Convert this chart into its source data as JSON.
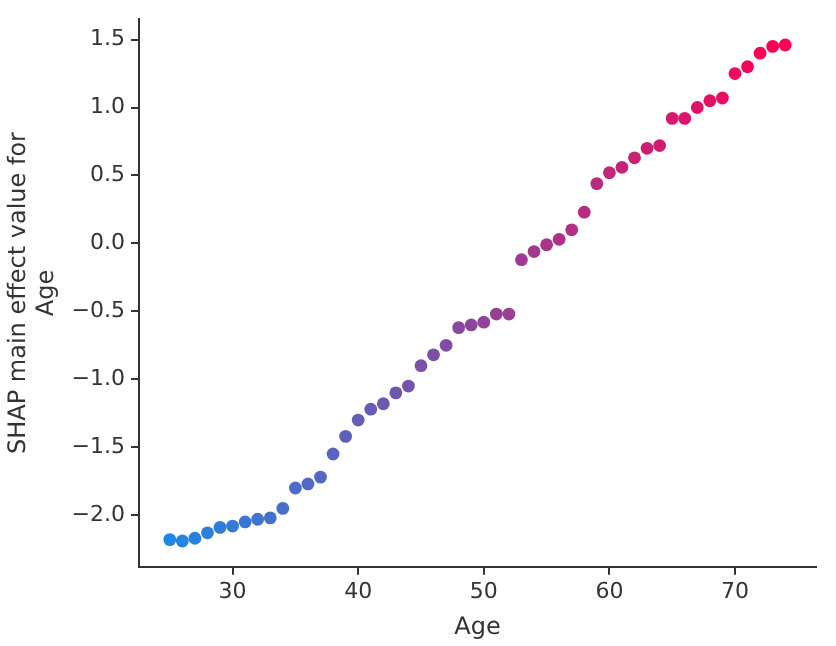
{
  "chart_data": {
    "type": "scatter",
    "xlabel": "Age",
    "ylabel": "SHAP main effect value for\nAge",
    "x": [
      25,
      26,
      27,
      28,
      29,
      30,
      31,
      32,
      33,
      34,
      35,
      36,
      37,
      38,
      39,
      40,
      41,
      42,
      43,
      44,
      45,
      46,
      47,
      48,
      49,
      50,
      51,
      52,
      53,
      54,
      55,
      56,
      57,
      58,
      59,
      60,
      61,
      62,
      63,
      64,
      65,
      66,
      67,
      68,
      69,
      70,
      71,
      72,
      73,
      74
    ],
    "values": [
      -2.18,
      -2.19,
      -2.17,
      -2.13,
      -2.09,
      -2.08,
      -2.05,
      -2.03,
      -2.02,
      -1.95,
      -1.8,
      -1.77,
      -1.72,
      -1.55,
      -1.42,
      -1.3,
      -1.22,
      -1.18,
      -1.1,
      -1.05,
      -0.9,
      -0.82,
      -0.75,
      -0.62,
      -0.6,
      -0.58,
      -0.52,
      -0.52,
      -0.12,
      -0.06,
      -0.01,
      0.03,
      0.1,
      0.23,
      0.44,
      0.52,
      0.56,
      0.63,
      0.7,
      0.72,
      0.92,
      0.92,
      1.0,
      1.05,
      1.07,
      1.25,
      1.3,
      1.4,
      1.45,
      1.46
    ],
    "colors": [
      "#1e88e5",
      "#2385e2",
      "#2782df",
      "#2c80dc",
      "#307dd9",
      "#357ad6",
      "#3a77d3",
      "#3e75d0",
      "#4372cd",
      "#476fca",
      "#4c6cc7",
      "#5169c4",
      "#5567c1",
      "#5a64be",
      "#5e61bb",
      "#635eb8",
      "#675cb5",
      "#6c59b2",
      "#7156af",
      "#7553ac",
      "#7a50a9",
      "#7e4ea6",
      "#834ba3",
      "#8848a0",
      "#8c459d",
      "#91439a",
      "#954097",
      "#9a3d94",
      "#9e3a91",
      "#a3388e",
      "#a8358b",
      "#ac3288",
      "#b12f85",
      "#b52c82",
      "#ba2a7f",
      "#bf277c",
      "#c32479",
      "#c82176",
      "#cc1f73",
      "#d11c70",
      "#d5196d",
      "#da166a",
      "#df1367",
      "#e31164",
      "#e80e61",
      "#ec0b5e",
      "#f1085b",
      "#f60658",
      "#fa0355",
      "#ff0052"
    ],
    "marker": "circle",
    "grid": false,
    "legend": false,
    "xlim": [
      22.55,
      76.45
    ],
    "xticks": [
      30,
      40,
      50,
      60,
      70
    ],
    "ylim": [
      -2.38,
      1.65
    ],
    "yticks": [
      {
        "value": -2,
        "label": "−2.0"
      },
      {
        "value": -1.5,
        "label": "−1.5"
      },
      {
        "value": -1,
        "label": "−1.0"
      },
      {
        "value": -0.5,
        "label": "−0.5"
      },
      {
        "value": 0,
        "label": "0.0"
      },
      {
        "value": 0.5,
        "label": "0.5"
      },
      {
        "value": 1,
        "label": "1.0"
      },
      {
        "value": 1.5,
        "label": "1.5"
      }
    ]
  }
}
